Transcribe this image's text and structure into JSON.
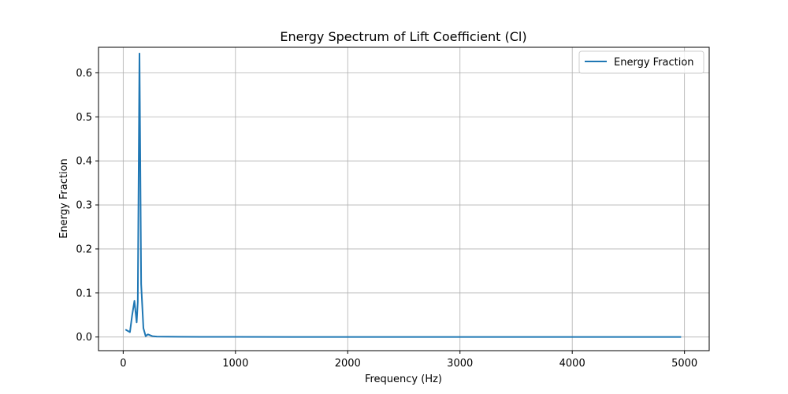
{
  "chart_data": {
    "type": "line",
    "title": "Energy Spectrum of Lift Coefficient (Cl)",
    "xlabel": "Frequency (Hz)",
    "ylabel": "Energy Fraction",
    "xlim": [
      -220,
      5220
    ],
    "ylim": [
      -0.031,
      0.658
    ],
    "xticks": [
      0,
      1000,
      2000,
      3000,
      4000,
      5000
    ],
    "yticks": [
      0.0,
      0.1,
      0.2,
      0.3,
      0.4,
      0.5,
      0.6
    ],
    "xtick_labels": [
      "0",
      "1000",
      "2000",
      "3000",
      "4000",
      "5000"
    ],
    "ytick_labels": [
      "0.0",
      "0.1",
      "0.2",
      "0.3",
      "0.4",
      "0.5",
      "0.6"
    ],
    "grid": true,
    "legend_position": "top-right",
    "series": [
      {
        "name": "Energy Fraction",
        "color": "#1f77b4",
        "x": [
          20,
          40,
          60,
          80,
          100,
          120,
          130,
          145,
          160,
          170,
          180,
          200,
          220,
          240,
          260,
          280,
          300,
          400,
          500,
          700,
          1000,
          1500,
          2000,
          2500,
          3000,
          3500,
          4000,
          4500,
          4970
        ],
        "y": [
          0.017,
          0.014,
          0.011,
          0.05,
          0.082,
          0.033,
          0.08,
          0.644,
          0.12,
          0.07,
          0.02,
          0.002,
          0.006,
          0.004,
          0.002,
          0.0015,
          0.001,
          0.0008,
          0.0006,
          0.0004,
          0.0003,
          0.0002,
          0.0002,
          0.0001,
          0.0001,
          0.0001,
          0.0001,
          0.0001,
          0.0001
        ]
      }
    ]
  }
}
